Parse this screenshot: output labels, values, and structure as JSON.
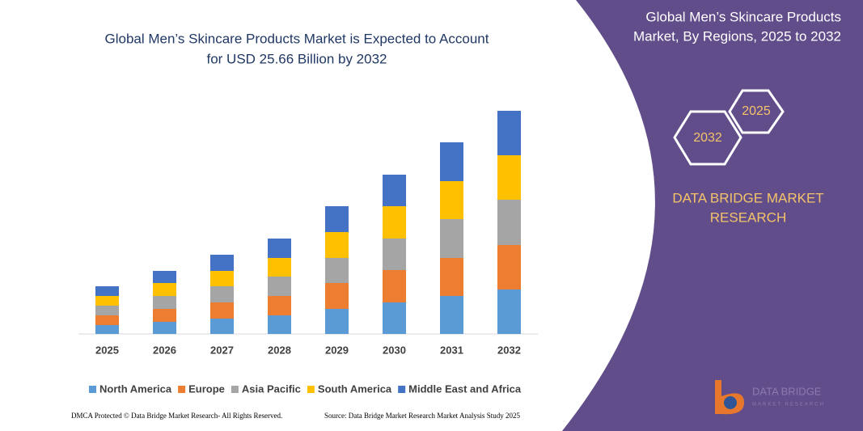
{
  "chart_data": {
    "type": "bar",
    "stacked": true,
    "title_lines": [
      "Global Men’s Skincare Products Market is Expected to Account",
      "for USD 25.66 Billion by 2032"
    ],
    "categories": [
      "2025",
      "2026",
      "2027",
      "2028",
      "2029",
      "2030",
      "2031",
      "2032"
    ],
    "series": [
      {
        "name": "North America",
        "color": "#5b9bd5",
        "values": [
          11,
          15,
          19,
          23,
          31,
          39,
          47,
          55
        ]
      },
      {
        "name": "Europe",
        "color": "#ed7d31",
        "values": [
          12,
          16,
          20,
          24,
          32,
          40,
          47,
          55
        ]
      },
      {
        "name": "Asia Pacific",
        "color": "#a5a5a5",
        "values": [
          12,
          16,
          20,
          24,
          31,
          39,
          48,
          56
        ]
      },
      {
        "name": "South America",
        "color": "#ffc000",
        "values": [
          12,
          16,
          19,
          23,
          32,
          40,
          47,
          55
        ]
      },
      {
        "name": "Middle East and Africa",
        "color": "#4472c4",
        "values": [
          12,
          15,
          20,
          24,
          32,
          39,
          48,
          55
        ]
      }
    ]
  },
  "side": {
    "heading_lines": [
      "Global Men’s Skincare Products",
      "Market, By Regions, 2025 to 2032"
    ],
    "hexagons": [
      "2025",
      "2032"
    ],
    "brand_lines": [
      "DATA BRIDGE MARKET",
      "RESEARCH"
    ]
  },
  "footer": {
    "left": "DMCA Protected © Data Bridge Market Research- All Rights Reserved.",
    "right": "Source: Data Bridge Market Research Market Analysis Study 2025"
  },
  "logo": {
    "name": "DATA BRIDGE",
    "tagline": "MARKET RESEARCH"
  }
}
